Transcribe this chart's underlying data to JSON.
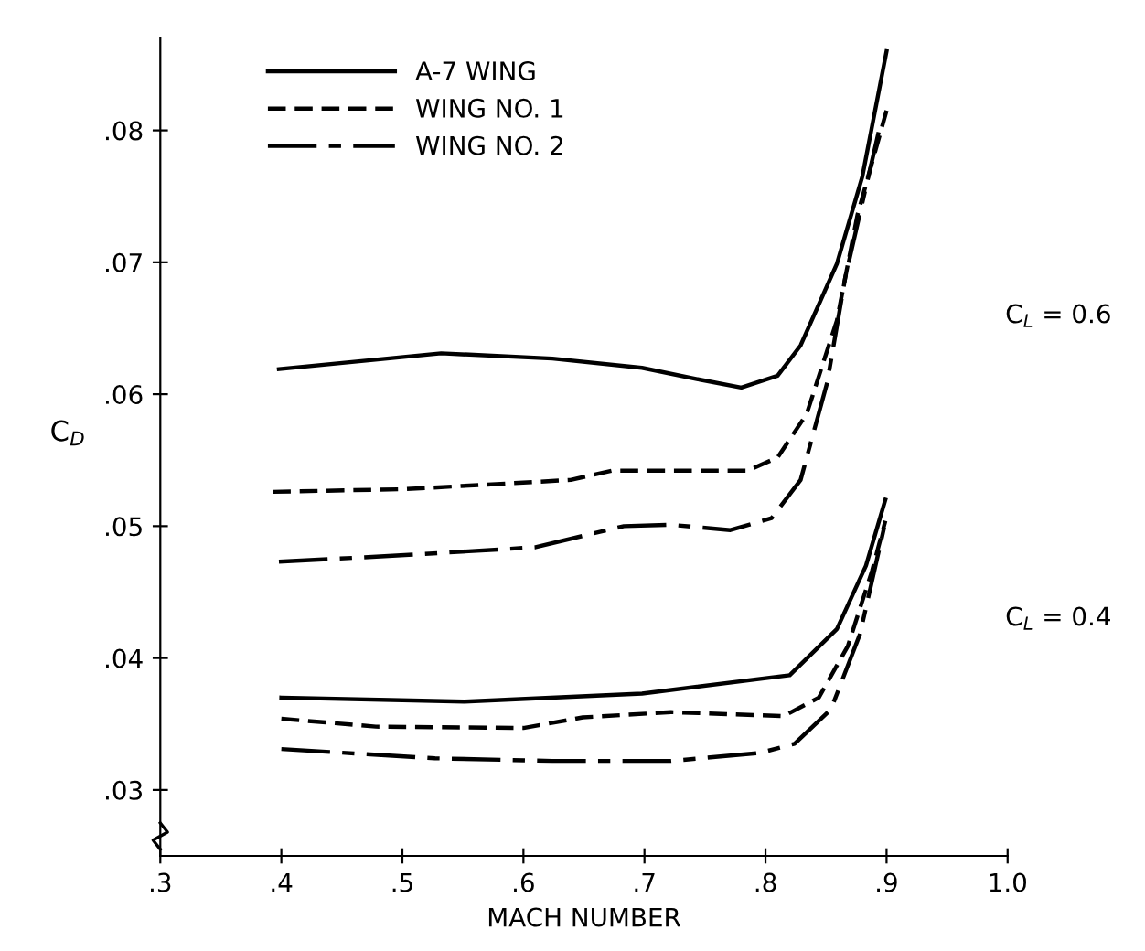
{
  "chart_data": {
    "type": "line",
    "xlabel": "MACH NUMBER",
    "ylabel": "C$_{D}$",
    "xlim": [
      0.3,
      1.0
    ],
    "ylim": [
      0.025,
      0.087
    ],
    "xticks": [
      {
        "value": 0.3,
        "label": ".3"
      },
      {
        "value": 0.4,
        "label": ".4"
      },
      {
        "value": 0.5,
        "label": ".5"
      },
      {
        "value": 0.6,
        "label": ".6"
      },
      {
        "value": 0.7,
        "label": ".7"
      },
      {
        "value": 0.8,
        "label": ".8"
      },
      {
        "value": 0.9,
        "label": ".9"
      },
      {
        "value": 1.0,
        "label": "1.0"
      }
    ],
    "yticks": [
      {
        "value": 0.03,
        "label": ".03"
      },
      {
        "value": 0.04,
        "label": ".04"
      },
      {
        "value": 0.05,
        "label": ".05"
      },
      {
        "value": 0.06,
        "label": ".06"
      },
      {
        "value": 0.07,
        "label": ".07"
      },
      {
        "value": 0.08,
        "label": ".08"
      }
    ],
    "grid": false,
    "legend": "top left",
    "marker": "none",
    "annotations": [
      "C$_{L}$ = 0.6",
      "C$_{L}$ = 0.4"
    ],
    "series": [
      {
        "name": "A-7 WING",
        "color": "#000000",
        "line_style": "solid",
        "x": [
          0.398,
          0.532,
          0.624,
          0.698,
          0.746,
          0.78,
          0.81,
          0.829,
          0.859,
          0.88,
          0.9
        ],
        "values": [
          0.0619,
          0.0631,
          0.0627,
          0.062,
          0.0611,
          0.0605,
          0.0614,
          0.0637,
          0.0699,
          0.0765,
          0.086
        ]
      },
      {
        "name": "WING NO. 1",
        "color": "#000000",
        "line_style": "dashed",
        "x": [
          0.393,
          0.502,
          0.639,
          0.673,
          0.746,
          0.785,
          0.81,
          0.834,
          0.859,
          0.876,
          0.9
        ],
        "values": [
          0.0526,
          0.0528,
          0.0535,
          0.0542,
          0.0542,
          0.0542,
          0.0552,
          0.0585,
          0.0656,
          0.0736,
          0.0815
        ]
      },
      {
        "name": "WING NO. 2",
        "color": "#000000",
        "line_style": "dashdot",
        "x": [
          0.398,
          0.502,
          0.61,
          0.683,
          0.722,
          0.771,
          0.805,
          0.829,
          0.851,
          0.866,
          0.895
        ],
        "values": [
          0.0473,
          0.0478,
          0.0484,
          0.05,
          0.0501,
          0.0497,
          0.0506,
          0.0535,
          0.0609,
          0.0689,
          0.0805
        ]
      },
      {
        "color": "#000000",
        "line_style": "solid",
        "x": [
          0.4,
          0.551,
          0.698,
          0.82,
          0.859,
          0.883,
          0.899
        ],
        "values": [
          0.037,
          0.0367,
          0.0373,
          0.0387,
          0.0422,
          0.047,
          0.052
        ]
      },
      {
        "color": "#000000",
        "line_style": "dashed",
        "x": [
          0.4,
          0.478,
          0.6,
          0.649,
          0.722,
          0.815,
          0.844,
          0.868,
          0.888,
          0.899
        ],
        "values": [
          0.0354,
          0.0348,
          0.0347,
          0.0355,
          0.0359,
          0.0356,
          0.037,
          0.0409,
          0.0466,
          0.0504
        ]
      },
      {
        "color": "#000000",
        "line_style": "dashdot",
        "x": [
          0.4,
          0.527,
          0.624,
          0.722,
          0.795,
          0.824,
          0.854,
          0.878,
          0.898
        ],
        "values": [
          0.0331,
          0.0324,
          0.0322,
          0.0322,
          0.0328,
          0.0335,
          0.0361,
          0.0418,
          0.0499
        ]
      }
    ]
  }
}
